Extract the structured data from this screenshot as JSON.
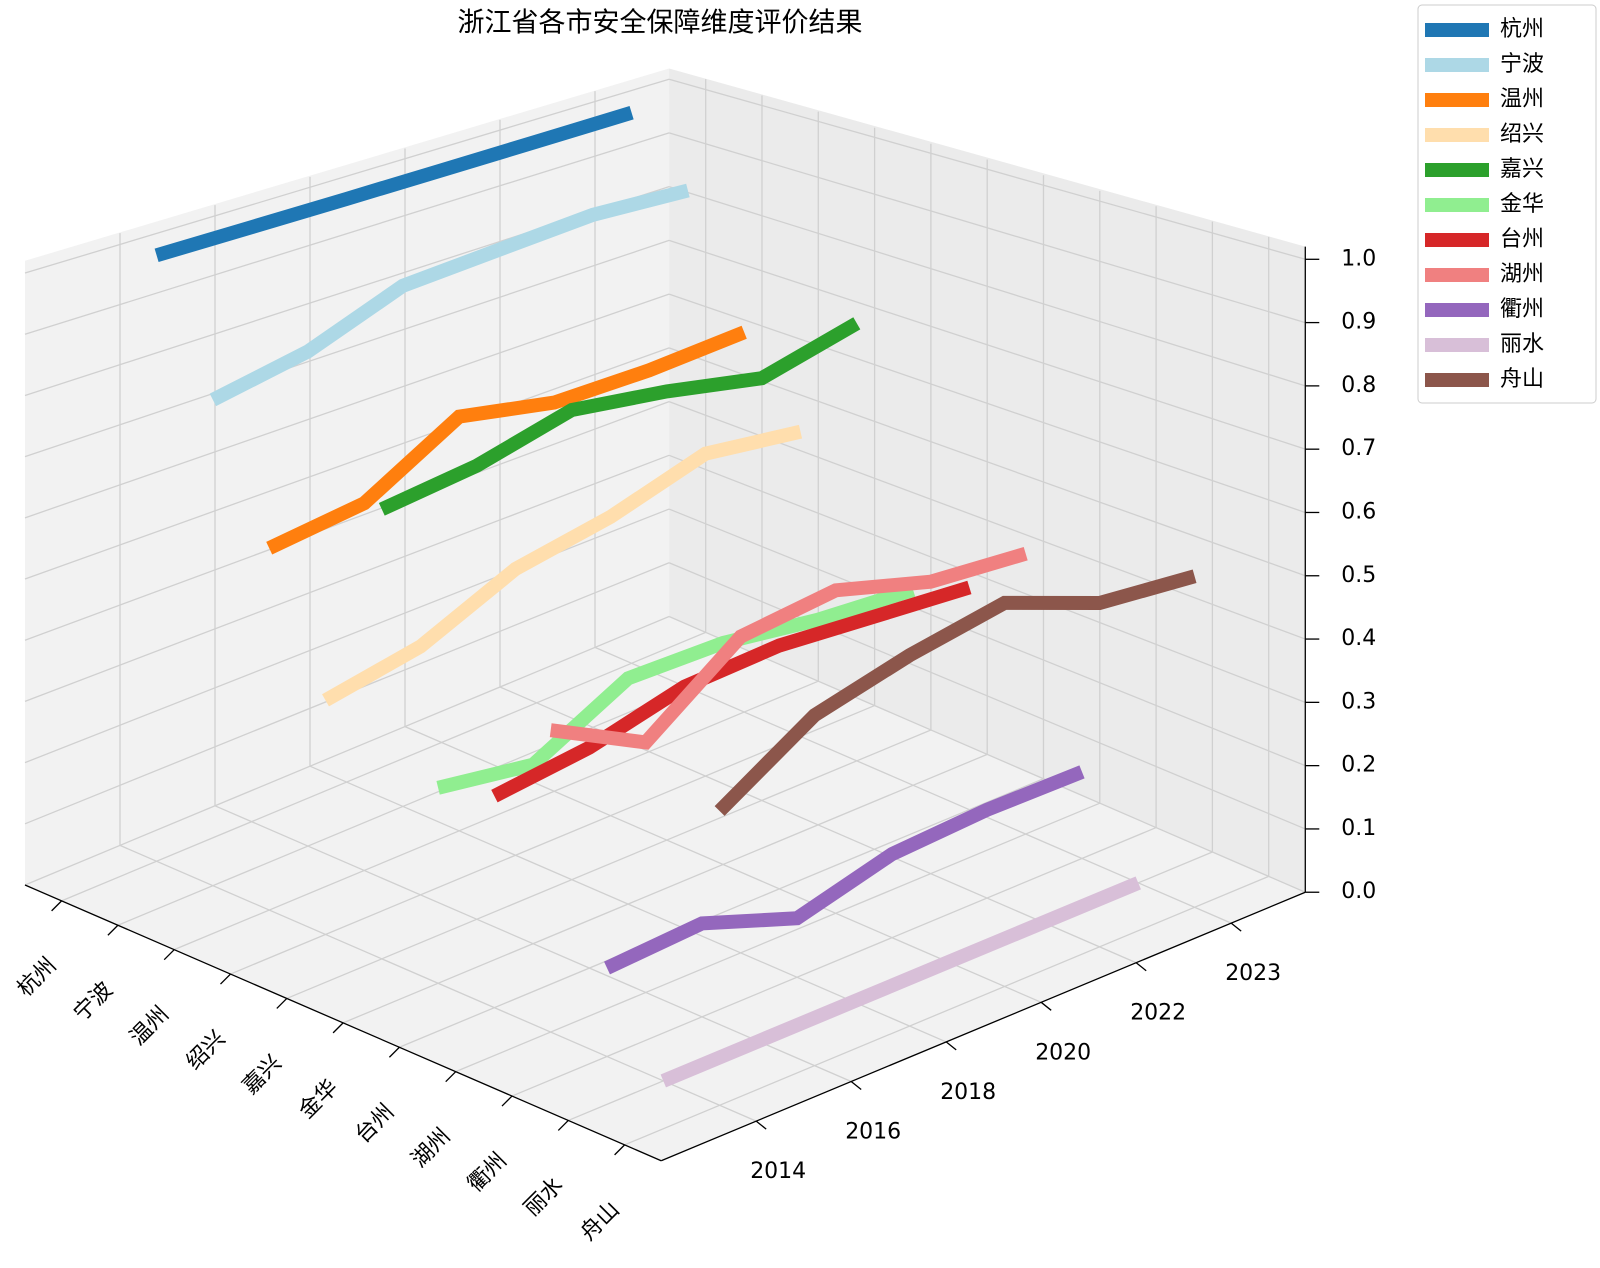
{
  "chart_data": {
    "type": "line3d",
    "title": "浙江省各市安全保障维度评价结果",
    "categories": [
      "杭州",
      "宁波",
      "温州",
      "绍兴",
      "嘉兴",
      "金华",
      "台州",
      "湖州",
      "衢州",
      "丽水",
      "舟山"
    ],
    "x": [
      "2014",
      "2016",
      "2018",
      "2020",
      "2022",
      "2023"
    ],
    "series": [
      {
        "name": "杭州",
        "color": "#1f77b4",
        "values": [
          1.0,
          1.0,
          1.0,
          1.0,
          1.0,
          1.0
        ]
      },
      {
        "name": "宁波",
        "color": "#add8e6",
        "values": [
          0.79,
          0.82,
          0.88,
          0.89,
          0.9,
          0.89
        ]
      },
      {
        "name": "温州",
        "color": "#ff7f0e",
        "values": [
          0.58,
          0.6,
          0.69,
          0.66,
          0.66,
          0.67
        ]
      },
      {
        "name": "绍兴",
        "color": "#ffdead",
        "values": [
          0.37,
          0.4,
          0.47,
          0.5,
          0.55,
          0.53
        ]
      },
      {
        "name": "嘉兴",
        "color": "#2ca02c",
        "values": [
          0.7,
          0.72,
          0.76,
          0.74,
          0.71,
          0.75
        ]
      },
      {
        "name": "金华",
        "color": "#90ee90",
        "values": [
          0.3,
          0.28,
          0.36,
          0.36,
          0.34,
          0.33
        ]
      },
      {
        "name": "台州",
        "color": "#d62728",
        "values": [
          0.32,
          0.34,
          0.38,
          0.39,
          0.38,
          0.37
        ]
      },
      {
        "name": "湖州",
        "color": "#f08080",
        "values": [
          0.45,
          0.38,
          0.49,
          0.51,
          0.47,
          0.46
        ]
      },
      {
        "name": "衢州",
        "color": "#9467bd",
        "values": [
          0.13,
          0.14,
          0.09,
          0.13,
          0.14,
          0.14
        ]
      },
      {
        "name": "丽水",
        "color": "#d8bfd8",
        "values": [
          0.0,
          0.0,
          0.0,
          0.0,
          0.0,
          0.0
        ]
      },
      {
        "name": "舟山",
        "color": "#8c564b",
        "values": [
          0.42,
          0.51,
          0.55,
          0.58,
          0.53,
          0.52
        ]
      }
    ],
    "zlim": [
      0,
      1.02
    ],
    "zticks": [
      {
        "value": 0,
        "label": "0.0"
      },
      {
        "value": 0.1,
        "label": "0.1"
      },
      {
        "value": 0.2,
        "label": "0.2"
      },
      {
        "value": 0.3,
        "label": "0.3"
      },
      {
        "value": 0.4,
        "label": "0.4"
      },
      {
        "value": 0.5,
        "label": "0.5"
      },
      {
        "value": 0.6,
        "label": "0.6"
      },
      {
        "value": 0.7,
        "label": "0.7"
      },
      {
        "value": 0.8,
        "label": "0.8"
      },
      {
        "value": 0.9,
        "label": "0.9"
      },
      {
        "value": 1.0,
        "label": "1.0"
      }
    ],
    "grid": true,
    "legend": "upper right"
  }
}
